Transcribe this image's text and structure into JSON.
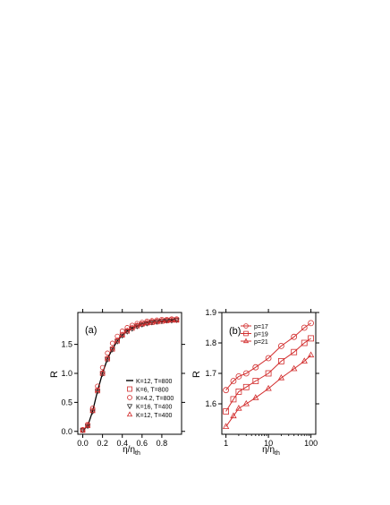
{
  "chart_data": [
    {
      "type": "line",
      "panel_label": "(a)",
      "xlabel": "η/η",
      "xlabel_sub": "th",
      "ylabel": "R",
      "xlim": [
        -0.05,
        1.0
      ],
      "ylim": [
        -0.05,
        2.05
      ],
      "x_ticks": [
        0.0,
        0.2,
        0.4,
        0.6,
        0.8
      ],
      "x_tick_labels": [
        "0.0",
        "0.2",
        "0.4",
        "0.6",
        "0.8"
      ],
      "y_ticks": [
        0.0,
        0.5,
        1.0,
        1.5
      ],
      "y_tick_labels": [
        "0.0",
        "0.5",
        "1.0",
        "1.5"
      ],
      "grid": false,
      "legend_position": "bottom-right",
      "legend": [
        {
          "label": "K=12, T=800",
          "marker": "line",
          "color": "#000000"
        },
        {
          "label": "K=6, T=800",
          "marker": "square",
          "color": "#d22c2c"
        },
        {
          "label": "K=4.2, T=800",
          "marker": "circle",
          "color": "#d22c2c"
        },
        {
          "label": "K=16, T=400",
          "marker": "triangle-down",
          "color": "#333333"
        },
        {
          "label": "K=12, T=400",
          "marker": "triangle-up",
          "color": "#d22c2c"
        }
      ],
      "x": [
        0.0,
        0.05,
        0.1,
        0.15,
        0.2,
        0.25,
        0.3,
        0.35,
        0.4,
        0.45,
        0.5,
        0.55,
        0.6,
        0.65,
        0.7,
        0.75,
        0.8,
        0.85,
        0.9,
        0.95
      ],
      "series": [
        {
          "name": "K=12, T=800",
          "marker": "line",
          "values": [
            0.02,
            0.09,
            0.35,
            0.7,
            1.0,
            1.25,
            1.42,
            1.56,
            1.66,
            1.73,
            1.78,
            1.82,
            1.85,
            1.87,
            1.88,
            1.89,
            1.9,
            1.91,
            1.92,
            1.92
          ]
        },
        {
          "name": "K=6, T=800",
          "marker": "square",
          "values": [
            0.02,
            0.1,
            0.36,
            0.7,
            1.0,
            1.25,
            1.42,
            1.56,
            1.66,
            1.73,
            1.78,
            1.82,
            1.85,
            1.87,
            1.88,
            1.89,
            1.9,
            1.91,
            1.92,
            1.92
          ]
        },
        {
          "name": "K=4.2, T=800",
          "marker": "circle",
          "values": [
            0.03,
            0.12,
            0.4,
            0.78,
            1.1,
            1.35,
            1.52,
            1.64,
            1.73,
            1.79,
            1.83,
            1.86,
            1.88,
            1.9,
            1.91,
            1.92,
            1.93,
            1.93,
            1.94,
            1.94
          ]
        },
        {
          "name": "K=16, T=400",
          "marker": "triangle-down",
          "values": [
            0.02,
            0.09,
            0.34,
            0.69,
            0.99,
            1.24,
            1.41,
            1.55,
            1.65,
            1.72,
            1.77,
            1.81,
            1.84,
            1.86,
            1.88,
            1.89,
            1.9,
            1.91,
            1.91,
            1.92
          ]
        },
        {
          "name": "K=12, T=400",
          "marker": "triangle-up",
          "values": [
            0.02,
            0.1,
            0.35,
            0.71,
            1.01,
            1.26,
            1.43,
            1.57,
            1.67,
            1.74,
            1.79,
            1.83,
            1.85,
            1.87,
            1.89,
            1.9,
            1.91,
            1.91,
            1.92,
            1.92
          ]
        }
      ]
    },
    {
      "type": "line",
      "panel_label": "(b)",
      "xlabel": "η/η",
      "xlabel_sub": "th",
      "ylabel": "R",
      "xscale": "log",
      "xlim": [
        0.8,
        130
      ],
      "ylim": [
        1.5,
        1.9
      ],
      "x_ticks": [
        1,
        10,
        100
      ],
      "x_tick_labels": [
        "1",
        "10",
        "100"
      ],
      "y_ticks": [
        1.6,
        1.7,
        1.8,
        1.9
      ],
      "y_tick_labels": [
        "1.6",
        "1.7",
        "1.8",
        "1.9"
      ],
      "grid": false,
      "legend_position": "top-left",
      "series": [
        {
          "name": "p=17",
          "marker": "circle",
          "color": "#d22c2c",
          "x": [
            1,
            1.5,
            2,
            3,
            5,
            10,
            20,
            40,
            70,
            100
          ],
          "values": [
            1.645,
            1.675,
            1.69,
            1.7,
            1.72,
            1.75,
            1.79,
            1.82,
            1.85,
            1.865
          ]
        },
        {
          "name": "p=19",
          "marker": "square",
          "color": "#d22c2c",
          "x": [
            1,
            1.5,
            2,
            3,
            5,
            10,
            20,
            40,
            70,
            100
          ],
          "values": [
            1.575,
            1.615,
            1.64,
            1.655,
            1.675,
            1.7,
            1.74,
            1.77,
            1.8,
            1.815
          ]
        },
        {
          "name": "p=21",
          "marker": "triangle-up",
          "color": "#d22c2c",
          "x": [
            1,
            1.5,
            2,
            3,
            5,
            10,
            20,
            40,
            70,
            100
          ],
          "values": [
            1.525,
            1.56,
            1.585,
            1.6,
            1.62,
            1.65,
            1.685,
            1.715,
            1.74,
            1.76
          ]
        }
      ]
    }
  ]
}
